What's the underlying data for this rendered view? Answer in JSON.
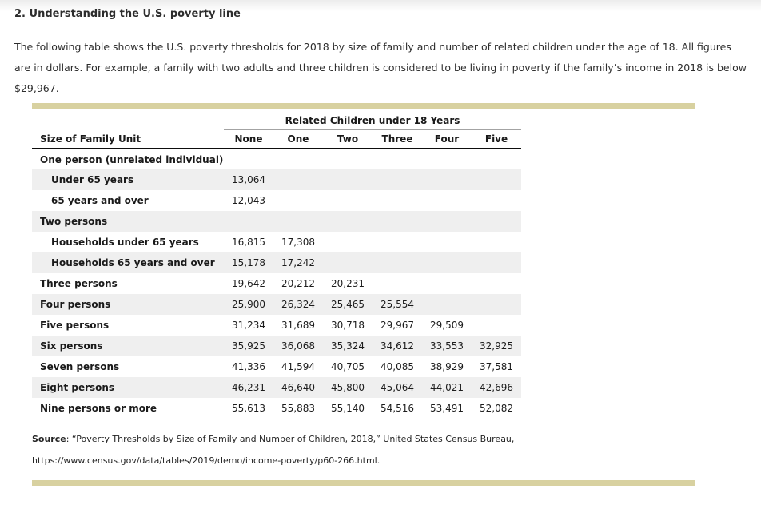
{
  "page": {
    "title": "2. Understanding the U.S. poverty line",
    "intro": "The following table shows the U.S. poverty thresholds for 2018 by size of family and number of related children under the age of 18. All figures are in dollars. For example, a family with two adults and three children is considered to be living in poverty if the family’s income in 2018 is below $29,967."
  },
  "table": {
    "spanner": "Related Children under 18 Years",
    "row_header": "Size of Family Unit",
    "columns": [
      "None",
      "One",
      "Two",
      "Three",
      "Four",
      "Five"
    ],
    "rows": [
      {
        "label": "One person (unrelated individual)",
        "indent": false,
        "values": []
      },
      {
        "label": "Under 65 years",
        "indent": true,
        "values": [
          "13,064"
        ]
      },
      {
        "label": "65 years and over",
        "indent": true,
        "values": [
          "12,043"
        ]
      },
      {
        "label": "Two persons",
        "indent": false,
        "values": []
      },
      {
        "label": "Households under 65 years",
        "indent": true,
        "values": [
          "16,815",
          "17,308"
        ]
      },
      {
        "label": "Households 65 years and over",
        "indent": true,
        "values": [
          "15,178",
          "17,242"
        ]
      },
      {
        "label": "Three persons",
        "indent": false,
        "values": [
          "19,642",
          "20,212",
          "20,231"
        ]
      },
      {
        "label": "Four persons",
        "indent": false,
        "values": [
          "25,900",
          "26,324",
          "25,465",
          "25,554"
        ]
      },
      {
        "label": "Five persons",
        "indent": false,
        "values": [
          "31,234",
          "31,689",
          "30,718",
          "29,967",
          "29,509"
        ]
      },
      {
        "label": "Six persons",
        "indent": false,
        "values": [
          "35,925",
          "36,068",
          "35,324",
          "34,612",
          "33,553",
          "32,925"
        ]
      },
      {
        "label": "Seven persons",
        "indent": false,
        "values": [
          "41,336",
          "41,594",
          "40,705",
          "40,085",
          "38,929",
          "37,581"
        ]
      },
      {
        "label": "Eight persons",
        "indent": false,
        "values": [
          "46,231",
          "46,640",
          "45,800",
          "45,064",
          "44,021",
          "42,696"
        ]
      },
      {
        "label": "Nine persons or more",
        "indent": false,
        "values": [
          "55,613",
          "55,883",
          "55,140",
          "54,516",
          "53,491",
          "52,082"
        ]
      }
    ]
  },
  "source": {
    "label": "Source",
    "citation": ": “Poverty Thresholds by Size of Family and Number of Children, 2018,” United States Census Bureau,",
    "url": "https://www.census.gov/data/tables/2019/demo/income-poverty/p60-266.html."
  },
  "colors": {
    "accent_bar": "#d8d1a0",
    "row_alt": "#efefef",
    "header_rule": "#0d0d0d",
    "spanner_rule": "#a3a3a3"
  }
}
